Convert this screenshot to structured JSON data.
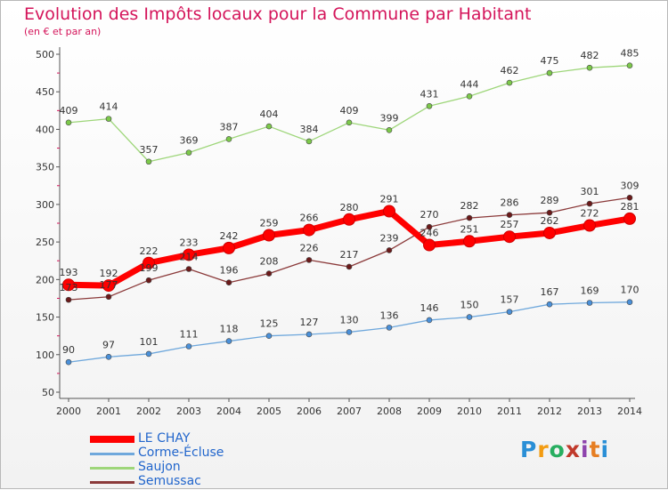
{
  "chart_data": {
    "type": "line",
    "title": "Evolution des Impôts locaux pour la Commune par Habitant",
    "subtitle": "(en € et par an)",
    "xlabel": "",
    "ylabel": "",
    "ylim": [
      50,
      500
    ],
    "yticks": [
      50,
      100,
      150,
      200,
      250,
      300,
      350,
      400,
      450,
      500
    ],
    "grid": false,
    "legend_position": "bottom-left",
    "x": [
      "2000",
      "2001",
      "2002",
      "2003",
      "2004",
      "2005",
      "2006",
      "2007",
      "2008",
      "2009",
      "2010",
      "2011",
      "2012",
      "2013",
      "2014"
    ],
    "series": [
      {
        "name": "LE CHAY",
        "color": "#ff0000",
        "highlight": true,
        "values": [
          193,
          192,
          222,
          233,
          242,
          259,
          266,
          280,
          291,
          246,
          251,
          257,
          262,
          272,
          281
        ]
      },
      {
        "name": "Corme-Écluse",
        "color": "#6fa8dc",
        "marker": "#4a90d9",
        "values": [
          90,
          97,
          101,
          111,
          118,
          125,
          127,
          130,
          136,
          146,
          150,
          157,
          167,
          169,
          170
        ]
      },
      {
        "name": "Saujon",
        "color": "#9ed67a",
        "marker": "#7cc94a",
        "values": [
          409,
          414,
          357,
          369,
          387,
          404,
          384,
          409,
          399,
          431,
          444,
          462,
          475,
          482,
          485
        ]
      },
      {
        "name": "Semussac",
        "color": "#8b3a3a",
        "marker": "#6b1a1a",
        "values": [
          173,
          177,
          199,
          214,
          196,
          208,
          226,
          217,
          239,
          270,
          282,
          286,
          289,
          301,
          309
        ]
      }
    ]
  },
  "logo": {
    "text": "Proxiti",
    "colors": [
      "#2a8fd6",
      "#f39c12",
      "#27ae60",
      "#c0392b",
      "#8e44ad",
      "#e67e22",
      "#2a8fd6"
    ]
  }
}
